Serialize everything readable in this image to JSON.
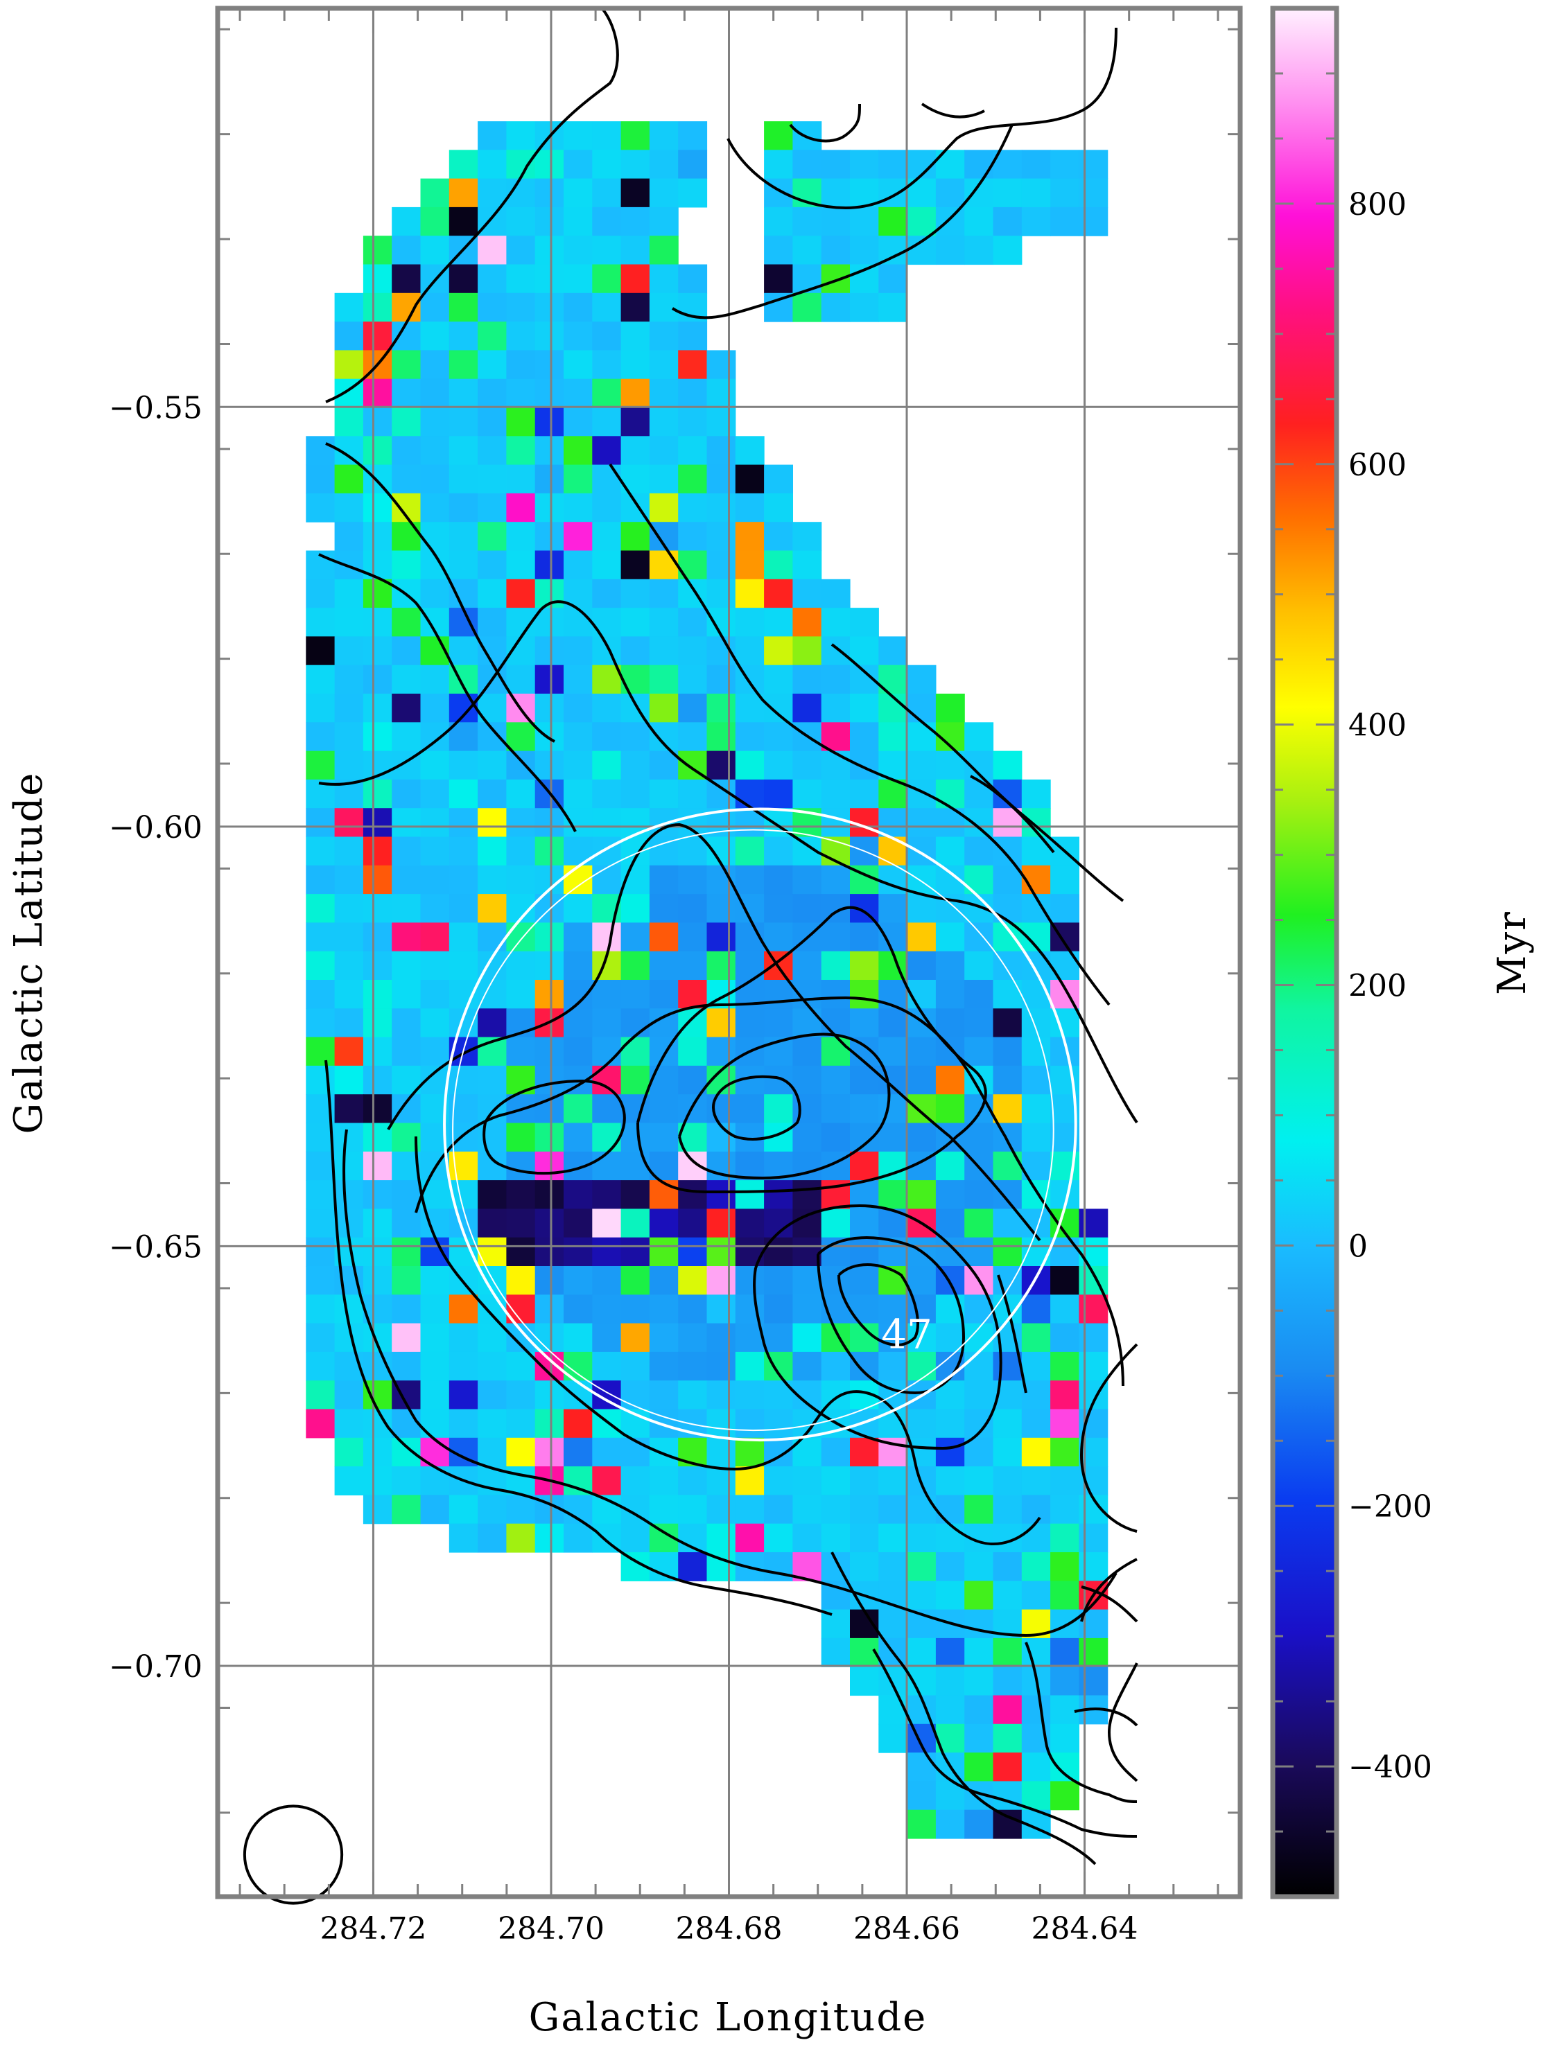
{
  "chart_data": {
    "type": "heatmap",
    "title": "",
    "xlabel": "Galactic Longitude",
    "ylabel": "Galactic Latitude",
    "x_range": [
      284.7375,
      284.6225
    ],
    "y_range": [
      -0.5025,
      -0.7275
    ],
    "x_ticks": [
      284.72,
      284.7,
      284.68,
      284.66,
      284.64
    ],
    "x_tick_labels": [
      "284.72",
      "284.70",
      "284.68",
      "284.66",
      "284.64"
    ],
    "y_ticks": [
      -0.55,
      -0.6,
      -0.65,
      -0.7
    ],
    "y_tick_labels": [
      "−0.55",
      "−0.60",
      "−0.65",
      "−0.70"
    ],
    "grid": true,
    "colorbar": {
      "label": "Myr",
      "range": [
        -500,
        950
      ],
      "ticks": [
        800,
        600,
        400,
        200,
        0,
        -200,
        -400
      ],
      "tick_labels": [
        "800",
        "600",
        "400",
        "200",
        "0",
        "−200",
        "−400"
      ]
    },
    "map": {
      "typical_value": 20,
      "central_depression_value": -70,
      "dark_row_latitude": -0.6475,
      "dark_row_value": -450
    },
    "annotation": {
      "text": "47",
      "l": 284.66,
      "b": -0.6605
    },
    "circle_region": {
      "center_l": 284.6765,
      "center_b": -0.6355,
      "radius_deg": 0.0355,
      "color": "#ffffff"
    },
    "beam": {
      "center_l": 284.729,
      "center_b": -0.7225,
      "radius_deg": 0.005
    },
    "colors": {
      "frame": "#808080",
      "grid": "#808080",
      "contour": "#000000"
    }
  }
}
